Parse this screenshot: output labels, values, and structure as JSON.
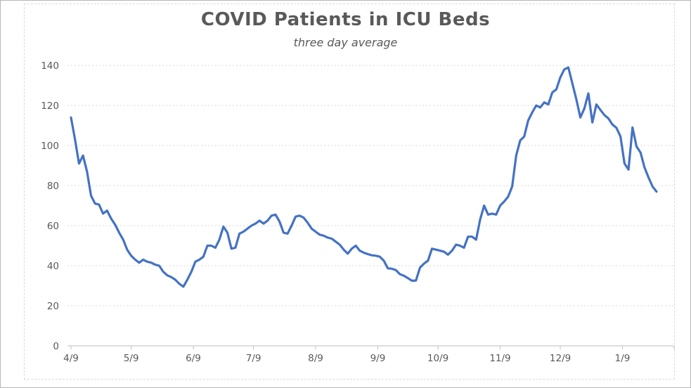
{
  "window": {
    "background": "#ffffff",
    "border_color": "#b7b7b7"
  },
  "chart_data": {
    "type": "line",
    "title": "COVID Patients in ICU Beds",
    "subtitle": "three day average",
    "legend": "none",
    "grid": "horizontal-dashed",
    "ylim": [
      0,
      140
    ],
    "y_ticks": [
      0,
      20,
      40,
      60,
      80,
      100,
      120,
      140
    ],
    "x_ticks": [
      {
        "label": "4/9",
        "day": 0
      },
      {
        "label": "5/9",
        "day": 30
      },
      {
        "label": "6/9",
        "day": 61
      },
      {
        "label": "7/9",
        "day": 91
      },
      {
        "label": "8/9",
        "day": 122
      },
      {
        "label": "9/9",
        "day": 153
      },
      {
        "label": "10/9",
        "day": 183
      },
      {
        "label": "11/9",
        "day": 214
      },
      {
        "label": "12/9",
        "day": 244
      },
      {
        "label": "1/9",
        "day": 275
      }
    ],
    "x_total_days": 292,
    "series": [
      {
        "name": "COVID patients in ICU beds (three day average)",
        "color": "#4472C4",
        "start_day": 0,
        "day_step": 2,
        "values": [
          114,
          103,
          91,
          95,
          87,
          75,
          71,
          70.5,
          66,
          67.5,
          63.5,
          60.5,
          56.5,
          53,
          48,
          45,
          43,
          41.5,
          43,
          42,
          41.5,
          40.5,
          40,
          37,
          35.2,
          34.3,
          33,
          31,
          29.5,
          33,
          37,
          42,
          43,
          44.5,
          50,
          50,
          49,
          53,
          59.5,
          56.5,
          48.5,
          49,
          56,
          57,
          58.5,
          60,
          61,
          62.5,
          61,
          62.5,
          65,
          65.5,
          62,
          56.5,
          56,
          60,
          64.5,
          65,
          64,
          61.5,
          58.5,
          57,
          55.5,
          55,
          54,
          53.5,
          52,
          50.5,
          48,
          46,
          48.5,
          50,
          47.5,
          46.5,
          45.8,
          45.2,
          45,
          44.5,
          42.5,
          38.7,
          38.5,
          37.8,
          35.8,
          35,
          33.8,
          32.5,
          32.6,
          39,
          41,
          42.5,
          48.5,
          48,
          47.5,
          47,
          45.5,
          47.5,
          50.5,
          50,
          49,
          54.5,
          54.5,
          53,
          63,
          70,
          65.5,
          66,
          65.5,
          70,
          72,
          74.5,
          79.5,
          95,
          102.5,
          104.5,
          112.5,
          116.5,
          120,
          119,
          121.5,
          120.5,
          126.5,
          128,
          134,
          138,
          139,
          131,
          123,
          114,
          118.5,
          126,
          111.5,
          120.5,
          117.8,
          115.2,
          113.5,
          110.5,
          108.8,
          104.5,
          91,
          88,
          109,
          99.5,
          96.5,
          89,
          84,
          79.5,
          77
        ]
      }
    ],
    "styles": {
      "line_color": "#4472C4",
      "grid_color": "#d9d9d9",
      "axis_color": "#bfbfbf",
      "text_color": "#595959",
      "title_color": "#595959",
      "frame_color": "#d9d9d9"
    }
  }
}
